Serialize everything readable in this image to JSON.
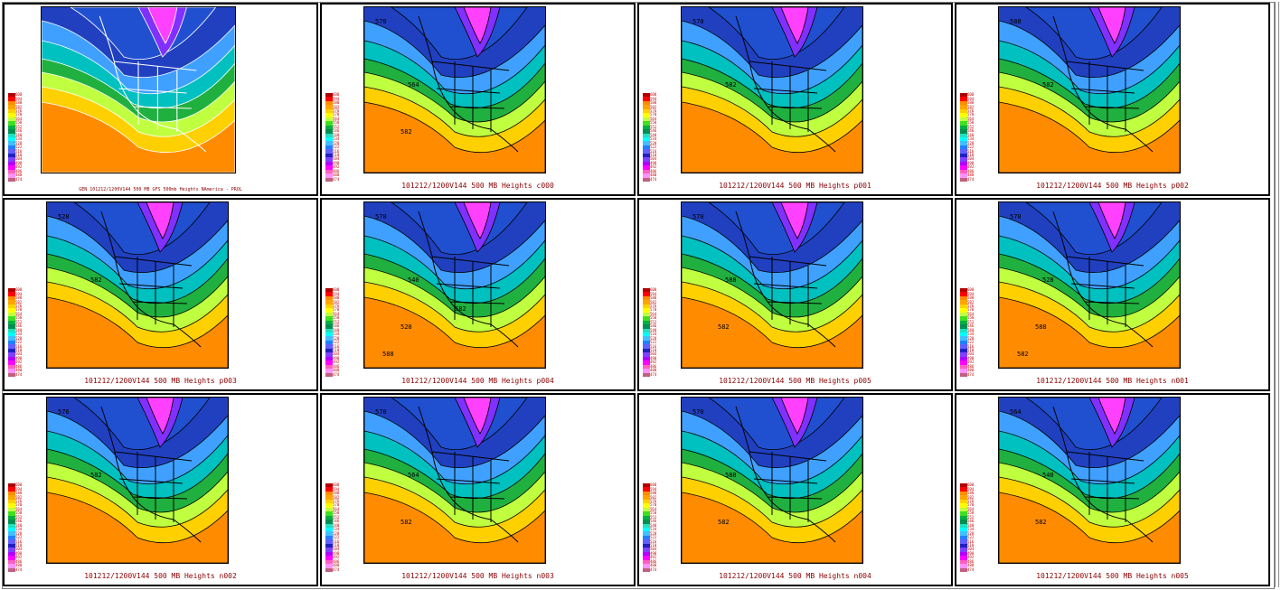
{
  "legend": {
    "labels": [
      "600",
      "594",
      "588",
      "582",
      "576",
      "570",
      "564",
      "558",
      "552",
      "546",
      "540",
      "534",
      "528",
      "522",
      "516",
      "510",
      "504",
      "498",
      "492",
      "486",
      "480",
      "474"
    ],
    "colors": [
      "#b00000",
      "#ff0000",
      "#ff8c00",
      "#ffa500",
      "#ffd000",
      "#ffff00",
      "#c0ff40",
      "#40e020",
      "#00b040",
      "#008f50",
      "#20e0c0",
      "#00ffff",
      "#40c0ff",
      "#2080ff",
      "#6060ff",
      "#2020c0",
      "#8040ff",
      "#b000ff",
      "#ff00ff",
      "#ff60c0",
      "#ff90ff",
      "#c06080"
    ]
  },
  "panels": [
    {
      "id": "gfs",
      "caption": "GEN 101212/1200V144  500 MB GFS 500mb Heights NAmerica - PROL",
      "labels": []
    },
    {
      "id": "c000",
      "caption": "101212/1200V144 500 MB Heights c000",
      "labels": [
        "570",
        "564",
        "582"
      ]
    },
    {
      "id": "p001",
      "caption": "101212/1200V144 500 MB Heights p001",
      "labels": [
        "570",
        "582"
      ]
    },
    {
      "id": "p002",
      "caption": "101212/1200V144 500 MB Heights p002",
      "labels": [
        "588",
        "582"
      ]
    },
    {
      "id": "p003",
      "caption": "101212/1200V144 500 MB Heights p003",
      "labels": [
        "528",
        "582"
      ]
    },
    {
      "id": "p004",
      "caption": "101212/1200V144 500 MB Heights p004",
      "labels": [
        "570",
        "540",
        "528",
        "588",
        "582"
      ]
    },
    {
      "id": "p005",
      "caption": "101212/1200V144 500 MB Heights p005",
      "labels": [
        "570",
        "588",
        "582"
      ]
    },
    {
      "id": "n001",
      "caption": "101212/1200V144 500 MB Heights n001",
      "labels": [
        "570",
        "528",
        "588",
        "582"
      ]
    },
    {
      "id": "n002",
      "caption": "101212/1200V144 500 MB Heights n002",
      "labels": [
        "576",
        "582"
      ]
    },
    {
      "id": "n003",
      "caption": "101212/1200V144 500 MB Heights n003",
      "labels": [
        "570",
        "564",
        "582"
      ]
    },
    {
      "id": "n004",
      "caption": "101212/1200V144 500 MB Heights n004",
      "labels": [
        "570",
        "588",
        "582"
      ]
    },
    {
      "id": "n005",
      "caption": "101212/1200V144 500 MB Heights n005",
      "labels": [
        "564",
        "540",
        "582"
      ]
    }
  ]
}
